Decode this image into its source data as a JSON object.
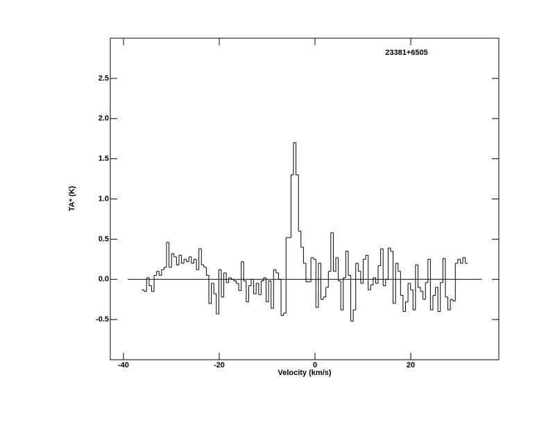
{
  "chart_data": {
    "type": "step",
    "title": "23381+6505",
    "xlabel": "Velocity (km/s)",
    "ylabel": "TA* (K)",
    "xlim": [
      -42.75,
      38.4
    ],
    "ylim": [
      -1.0,
      3.0
    ],
    "xticks": [
      -40,
      -20,
      0,
      20
    ],
    "yticks": [
      -0.5,
      {
        "value": 0,
        "label": "0.0"
      },
      0.5,
      {
        "value": 1,
        "label": "1.0"
      },
      1.5,
      {
        "value": 2,
        "label": "2.0"
      },
      2.5
    ],
    "baseline": 0,
    "color": "#000000",
    "x": [
      -35.95,
      -35.43,
      -34.91,
      -34.39,
      -33.87,
      -33.35,
      -32.83,
      -32.31,
      -31.79,
      -31.27,
      -30.75,
      -30.23,
      -29.71,
      -29.19,
      -28.67,
      -28.15,
      -27.63,
      -27.11,
      -26.59,
      -26.07,
      -25.55,
      -25.03,
      -24.51,
      -23.99,
      -23.47,
      -22.95,
      -22.43,
      -21.91,
      -21.39,
      -20.87,
      -20.35,
      -19.83,
      -19.31,
      -18.79,
      -18.27,
      -17.75,
      -17.23,
      -16.71,
      -16.19,
      -15.67,
      -15.15,
      -14.63,
      -14.11,
      -13.59,
      -13.07,
      -12.55,
      -12.03,
      -11.51,
      -10.99,
      -10.47,
      -9.95,
      -9.43,
      -8.91,
      -8.39,
      -7.87,
      -7.35,
      -6.83,
      -6.31,
      -5.79,
      -5.27,
      -4.75,
      -4.23,
      -3.71,
      -3.19,
      -2.67,
      -2.15,
      -1.63,
      -1.11,
      -0.59,
      -0.07,
      0.45,
      0.97,
      1.49,
      2.01,
      2.53,
      3.05,
      3.57,
      4.09,
      4.61,
      5.13,
      5.65,
      6.17,
      6.69,
      7.21,
      7.73,
      8.25,
      8.77,
      9.29,
      9.81,
      10.33,
      10.85,
      11.37,
      11.89,
      12.41,
      12.93,
      13.45,
      13.97,
      14.49,
      15.01,
      15.53,
      16.05,
      16.57,
      17.09,
      17.61,
      18.13,
      18.65,
      19.17,
      19.69,
      20.21,
      20.73,
      21.25,
      21.77,
      22.29,
      22.81,
      23.33,
      23.85,
      24.37,
      24.89,
      25.41,
      25.93,
      26.45,
      26.97,
      27.49,
      28.01,
      28.53,
      29.05,
      29.57,
      30.09,
      30.61,
      31.13,
      31.65
    ],
    "values": [
      -0.13,
      -0.15,
      0.02,
      -0.08,
      -0.15,
      0.05,
      0.1,
      0.05,
      0.12,
      0.15,
      0.46,
      0.15,
      0.32,
      0.28,
      0.18,
      0.3,
      0.2,
      0.25,
      0.22,
      0.28,
      0.2,
      0.25,
      0.12,
      0.38,
      0.18,
      0.15,
      0.05,
      -0.3,
      -0.05,
      -0.18,
      -0.43,
      0.12,
      -0.22,
      0.08,
      -0.04,
      0.02,
      0.0,
      -0.02,
      -0.05,
      -0.14,
      0.22,
      -0.02,
      -0.28,
      -0.08,
      0.0,
      -0.18,
      -0.05,
      -0.19,
      -0.02,
      0.02,
      -0.28,
      -0.02,
      -0.36,
      0.12,
      0.08,
      0.0,
      -0.45,
      -0.42,
      0.52,
      0.52,
      1.3,
      1.7,
      1.3,
      0.6,
      0.4,
      0.2,
      -0.03,
      -0.03,
      0.27,
      0.25,
      -0.35,
      0.2,
      -0.25,
      -0.22,
      -0.1,
      0.1,
      0.58,
      0.1,
      0.27,
      -0.02,
      -0.38,
      0.02,
      0.35,
      0.05,
      -0.52,
      -0.38,
      0.2,
      0.1,
      -0.05,
      0.25,
      0.3,
      -0.13,
      -0.07,
      0.02,
      -0.05,
      0.17,
      0.38,
      -0.08,
      0.0,
      0.39,
      0.35,
      -0.3,
      0.2,
      0.1,
      -0.2,
      -0.4,
      -0.28,
      -0.05,
      -0.13,
      -0.38,
      0.18,
      -0.1,
      -0.15,
      -0.25,
      -0.04,
      0.25,
      -0.38,
      -0.2,
      -0.1,
      -0.4,
      -0.04,
      0.26,
      -0.22,
      -0.38,
      -0.25,
      -0.27,
      0.2,
      0.25,
      0.2,
      0.27,
      0.2
    ]
  }
}
